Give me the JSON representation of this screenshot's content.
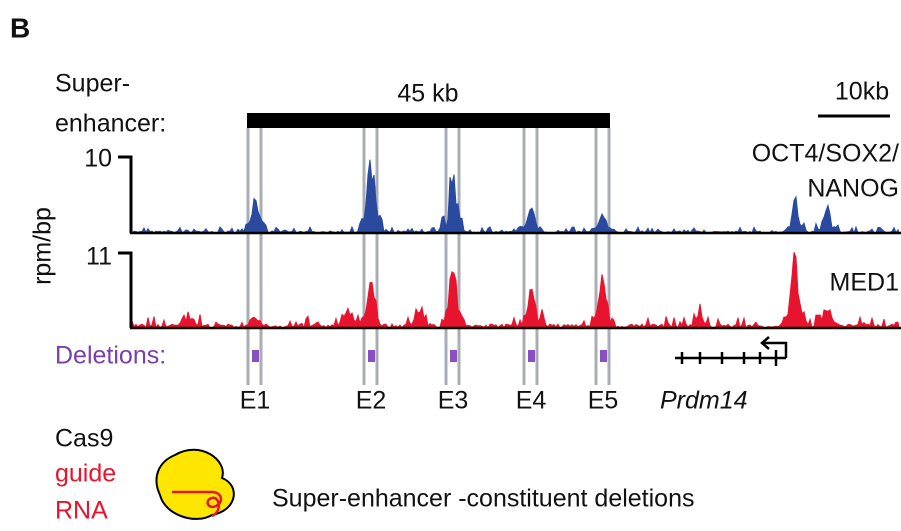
{
  "panel": "B",
  "super_enhancer": {
    "label": [
      "Super-",
      "enhancer:"
    ],
    "span": "45 kb",
    "scale": "10kb"
  },
  "tracks": [
    {
      "name": [
        "OCT4/SOX2/",
        "NANOG"
      ],
      "max": 10
    },
    {
      "name": [
        "MED1"
      ],
      "max": 11
    }
  ],
  "y_axis_label": "rpm/bp",
  "deletions": {
    "label": "Deletions:",
    "elements": [
      "E1",
      "E2",
      "E3",
      "E4",
      "E5"
    ]
  },
  "gene": "Prdm14",
  "cas9": {
    "label": "Cas9",
    "guide": [
      "guide",
      "RNA"
    ]
  },
  "caption": "Super-enhancer -constituent deletions"
}
